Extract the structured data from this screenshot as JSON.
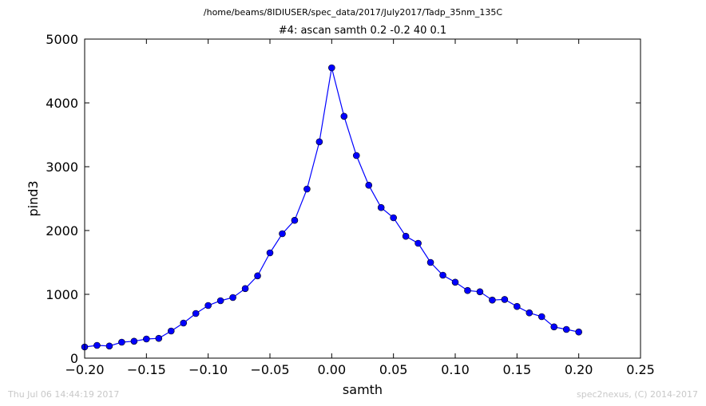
{
  "header": {
    "path": "/home/beams/8IDIUSER/spec_data/2017/July2017/Tadp_35nm_135C"
  },
  "footer": {
    "timestamp": "Thu Jul 06 14:44:19 2017",
    "credit": "spec2nexus, (C) 2014-2017"
  },
  "chart_data": {
    "type": "line",
    "title": "#4: ascan  samth 0.2 -0.2  40 0.1",
    "xlabel": "samth",
    "ylabel": "pind3",
    "xlim": [
      -0.2,
      0.25
    ],
    "ylim": [
      0,
      5000
    ],
    "xticks": [
      "−0.20",
      "−0.15",
      "−0.10",
      "−0.05",
      "0.00",
      "0.05",
      "0.10",
      "0.15",
      "0.20",
      "0.25"
    ],
    "xtick_values": [
      -0.2,
      -0.15,
      -0.1,
      -0.05,
      0.0,
      0.05,
      0.1,
      0.15,
      0.2,
      0.25
    ],
    "yticks": [
      "0",
      "1000",
      "2000",
      "3000",
      "4000",
      "5000"
    ],
    "ytick_values": [
      0,
      1000,
      2000,
      3000,
      4000,
      5000
    ],
    "grid": false,
    "line_color": "#0000ff",
    "marker_color": "#0000ff",
    "x": [
      -0.2,
      -0.19,
      -0.18,
      -0.17,
      -0.16,
      -0.15,
      -0.14,
      -0.13,
      -0.12,
      -0.11,
      -0.1,
      -0.09,
      -0.08,
      -0.07,
      -0.06,
      -0.05,
      -0.04,
      -0.03,
      -0.02,
      -0.01,
      0.0,
      0.01,
      0.02,
      0.03,
      0.04,
      0.05,
      0.06,
      0.07,
      0.08,
      0.09,
      0.1,
      0.11,
      0.12,
      0.13,
      0.14,
      0.15,
      0.16,
      0.17,
      0.18,
      0.19,
      0.2
    ],
    "y": [
      175,
      200,
      190,
      250,
      265,
      300,
      310,
      425,
      550,
      700,
      825,
      900,
      950,
      1090,
      1290,
      1650,
      1950,
      2160,
      2650,
      3390,
      4550,
      3790,
      3175,
      2710,
      2360,
      2200,
      1910,
      1800,
      1500,
      1300,
      1190,
      1060,
      1040,
      910,
      920,
      810,
      710,
      650,
      490,
      450,
      410
    ]
  }
}
